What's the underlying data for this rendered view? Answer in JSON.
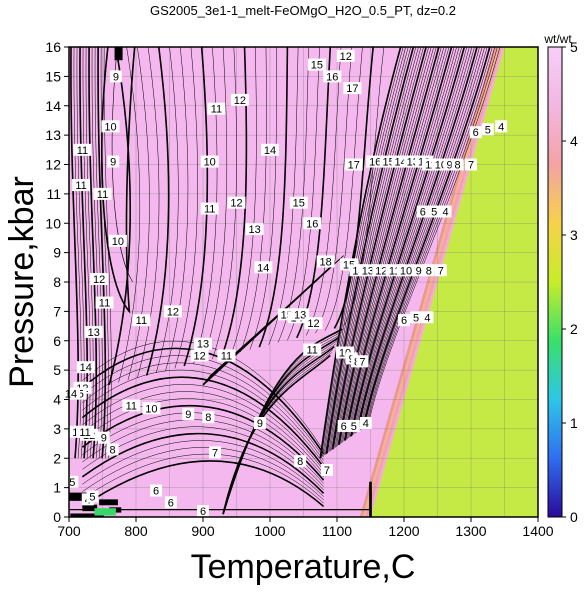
{
  "chart_data": {
    "type": "heatmap",
    "title": "GS2005_3e1-1_melt-FeOMgO_H2O_0.5_PT, dz=0.2",
    "xlabel": "Temperature,C",
    "ylabel": "Pressure,kbar",
    "xlim": [
      700,
      1400
    ],
    "ylim": [
      0,
      16
    ],
    "x_ticks": [
      "700",
      "800",
      "900",
      "1000",
      "1100",
      "1200",
      "1300",
      "1400"
    ],
    "y_ticks": [
      "0",
      "1",
      "2",
      "3",
      "4",
      "5",
      "6",
      "7",
      "8",
      "9",
      "10",
      "11",
      "12",
      "13",
      "14",
      "15",
      "16"
    ],
    "grid": true,
    "colorbar": {
      "label": "wt/wt",
      "range": [
        0,
        5
      ],
      "ticks": [
        "0",
        "1",
        "2",
        "3",
        "4",
        "5"
      ],
      "placement": "right",
      "stops": [
        "#2a0a9a",
        "#2f6ef0",
        "#2ec6e8",
        "#39e06a",
        "#c8ec2a",
        "#f6d24a",
        "#f4a3a3",
        "#f3b6e3",
        "#f7cff7"
      ]
    },
    "regions": {
      "melt_field_color": "#f5b8ee",
      "subsolidus_color": "#c5ea46"
    },
    "solidus_boundary": [
      {
        "T": 1150,
        "P": 0
      },
      {
        "T": 1350,
        "P": 16
      }
    ],
    "contour_labels": [
      {
        "T": 1113,
        "P": 15.7,
        "text": "12"
      },
      {
        "T": 1070,
        "P": 15.4,
        "text": "15"
      },
      {
        "T": 1093,
        "P": 15.0,
        "text": "16"
      },
      {
        "T": 1123,
        "P": 14.6,
        "text": "17"
      },
      {
        "T": 770,
        "P": 15.0,
        "text": "9"
      },
      {
        "T": 762,
        "P": 13.3,
        "text": "10"
      },
      {
        "T": 720,
        "P": 12.5,
        "text": "11"
      },
      {
        "T": 766,
        "P": 12.1,
        "text": "9"
      },
      {
        "T": 920,
        "P": 13.9,
        "text": "11"
      },
      {
        "T": 955,
        "P": 14.2,
        "text": "12"
      },
      {
        "T": 1000,
        "P": 12.5,
        "text": "14"
      },
      {
        "T": 910,
        "P": 12.1,
        "text": "10"
      },
      {
        "T": 1307,
        "P": 13.1,
        "text": "6"
      },
      {
        "T": 1325,
        "P": 13.2,
        "text": "5"
      },
      {
        "T": 1345,
        "P": 13.3,
        "text": "4"
      },
      {
        "T": 1125,
        "P": 12.0,
        "text": "17"
      },
      {
        "T": 1157,
        "P": 12.1,
        "text": "16"
      },
      {
        "T": 1177,
        "P": 12.1,
        "text": "15"
      },
      {
        "T": 1195,
        "P": 12.1,
        "text": "14"
      },
      {
        "T": 1213,
        "P": 12.1,
        "text": "13"
      },
      {
        "T": 1230,
        "P": 12.1,
        "text": "12"
      },
      {
        "T": 1240,
        "P": 12.0,
        "text": "11"
      },
      {
        "T": 1255,
        "P": 12.0,
        "text": "10"
      },
      {
        "T": 1268,
        "P": 12.0,
        "text": "9"
      },
      {
        "T": 1280,
        "P": 12.0,
        "text": "8"
      },
      {
        "T": 1300,
        "P": 12.0,
        "text": "7"
      },
      {
        "T": 718,
        "P": 11.3,
        "text": "11"
      },
      {
        "T": 750,
        "P": 11.0,
        "text": "11"
      },
      {
        "T": 910,
        "P": 10.5,
        "text": "11"
      },
      {
        "T": 950,
        "P": 10.7,
        "text": "12"
      },
      {
        "T": 1043,
        "P": 10.7,
        "text": "15"
      },
      {
        "T": 1228,
        "P": 10.4,
        "text": "6"
      },
      {
        "T": 1245,
        "P": 10.4,
        "text": "5"
      },
      {
        "T": 1262,
        "P": 10.4,
        "text": "4"
      },
      {
        "T": 977,
        "P": 9.8,
        "text": "13"
      },
      {
        "T": 1063,
        "P": 10.0,
        "text": "16"
      },
      {
        "T": 773,
        "P": 9.4,
        "text": "10"
      },
      {
        "T": 990,
        "P": 8.5,
        "text": "14"
      },
      {
        "T": 1083,
        "P": 8.7,
        "text": "18"
      },
      {
        "T": 1118,
        "P": 8.6,
        "text": "15"
      },
      {
        "T": 1132,
        "P": 8.4,
        "text": "14"
      },
      {
        "T": 1146,
        "P": 8.4,
        "text": "13"
      },
      {
        "T": 1166,
        "P": 8.4,
        "text": "12"
      },
      {
        "T": 1186,
        "P": 8.4,
        "text": "11"
      },
      {
        "T": 1203,
        "P": 8.4,
        "text": "10"
      },
      {
        "T": 1222,
        "P": 8.4,
        "text": "9"
      },
      {
        "T": 1237,
        "P": 8.4,
        "text": "8"
      },
      {
        "T": 1255,
        "P": 8.4,
        "text": "7"
      },
      {
        "T": 745,
        "P": 8.1,
        "text": "12"
      },
      {
        "T": 753,
        "P": 7.3,
        "text": "11"
      },
      {
        "T": 1025,
        "P": 6.9,
        "text": "15"
      },
      {
        "T": 1040,
        "P": 6.8,
        "text": "14"
      },
      {
        "T": 1045,
        "P": 6.9,
        "text": "13"
      },
      {
        "T": 1065,
        "P": 6.6,
        "text": "12"
      },
      {
        "T": 1200,
        "P": 6.7,
        "text": "6"
      },
      {
        "T": 1218,
        "P": 6.8,
        "text": "5"
      },
      {
        "T": 1235,
        "P": 6.8,
        "text": "4"
      },
      {
        "T": 737,
        "P": 6.3,
        "text": "13"
      },
      {
        "T": 808,
        "P": 6.7,
        "text": "11"
      },
      {
        "T": 855,
        "P": 7.0,
        "text": "12"
      },
      {
        "T": 900,
        "P": 5.9,
        "text": "13"
      },
      {
        "T": 895,
        "P": 5.5,
        "text": "12"
      },
      {
        "T": 935,
        "P": 5.5,
        "text": "11"
      },
      {
        "T": 1063,
        "P": 5.7,
        "text": "11"
      },
      {
        "T": 1112,
        "P": 5.6,
        "text": "10"
      },
      {
        "T": 1122,
        "P": 5.4,
        "text": "9"
      },
      {
        "T": 1130,
        "P": 5.3,
        "text": "8"
      },
      {
        "T": 1138,
        "P": 5.3,
        "text": "7"
      },
      {
        "T": 725,
        "P": 5.1,
        "text": "14"
      },
      {
        "T": 720,
        "P": 4.4,
        "text": "12"
      },
      {
        "T": 713,
        "P": 4.2,
        "text": "15"
      },
      {
        "T": 703,
        "P": 4.2,
        "text": "14"
      },
      {
        "T": 793,
        "P": 3.8,
        "text": "11"
      },
      {
        "T": 823,
        "P": 3.7,
        "text": "10"
      },
      {
        "T": 878,
        "P": 3.5,
        "text": "9"
      },
      {
        "T": 908,
        "P": 3.4,
        "text": "8"
      },
      {
        "T": 730,
        "P": 2.8,
        "text": "12"
      },
      {
        "T": 714,
        "P": 2.9,
        "text": "13"
      },
      {
        "T": 724,
        "P": 2.9,
        "text": "11"
      },
      {
        "T": 752,
        "P": 2.7,
        "text": "9"
      },
      {
        "T": 765,
        "P": 2.3,
        "text": "8"
      },
      {
        "T": 918,
        "P": 2.2,
        "text": "7"
      },
      {
        "T": 985,
        "P": 3.2,
        "text": "9"
      },
      {
        "T": 1045,
        "P": 1.9,
        "text": "8"
      },
      {
        "T": 1085,
        "P": 1.6,
        "text": "7"
      },
      {
        "T": 1110,
        "P": 3.1,
        "text": "6"
      },
      {
        "T": 1125,
        "P": 3.1,
        "text": "5"
      },
      {
        "T": 1143,
        "P": 3.2,
        "text": "4"
      },
      {
        "T": 705,
        "P": 1.2,
        "text": "5"
      },
      {
        "T": 728,
        "P": 0.6,
        "text": "4"
      },
      {
        "T": 735,
        "P": 0.7,
        "text": "5"
      },
      {
        "T": 830,
        "P": 0.9,
        "text": "6"
      },
      {
        "T": 852,
        "P": 0.5,
        "text": "6"
      },
      {
        "T": 900,
        "P": 0.2,
        "text": "6"
      }
    ]
  }
}
